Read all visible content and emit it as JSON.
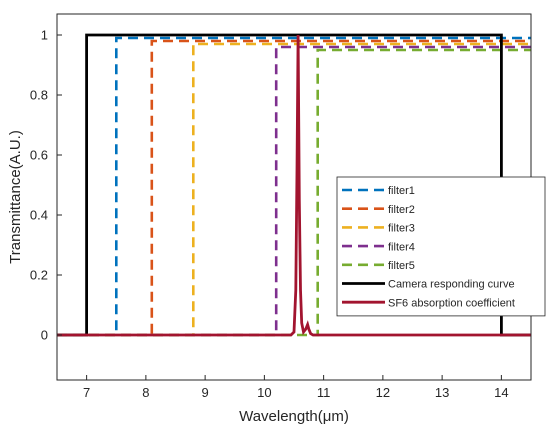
{
  "chart_data": {
    "type": "line",
    "title": "",
    "xlabel": "Wavelength(μm)",
    "ylabel": "Transmittance(A.U.)",
    "xlim": [
      6.5,
      14.5
    ],
    "ylim": [
      -0.15,
      1.07
    ],
    "xticks": [
      7,
      8,
      9,
      10,
      11,
      12,
      13,
      14
    ],
    "yticks": [
      0,
      0.2,
      0.4,
      0.6,
      0.8,
      1
    ],
    "grid": false,
    "legend_position": "middle-right",
    "series": [
      {
        "name": "filter1",
        "style": "dashed",
        "color": "#0072BD",
        "x": [
          6.5,
          7.5,
          7.5,
          14.5
        ],
        "y": [
          0,
          0,
          0.99,
          0.99
        ]
      },
      {
        "name": "filter2",
        "style": "dashed",
        "color": "#D95319",
        "x": [
          6.5,
          8.1,
          8.1,
          14.5
        ],
        "y": [
          0,
          0,
          0.98,
          0.98
        ]
      },
      {
        "name": "filter3",
        "style": "dashed",
        "color": "#EDB120",
        "x": [
          6.5,
          8.8,
          8.8,
          14.5
        ],
        "y": [
          0,
          0,
          0.97,
          0.97
        ]
      },
      {
        "name": "filter4",
        "style": "dashed",
        "color": "#7E2F8E",
        "x": [
          6.5,
          10.2,
          10.2,
          14.5
        ],
        "y": [
          0,
          0,
          0.96,
          0.96
        ]
      },
      {
        "name": "filter5",
        "style": "dashed",
        "color": "#77AC30",
        "x": [
          6.5,
          10.9,
          10.9,
          14.5
        ],
        "y": [
          0,
          0,
          0.95,
          0.95
        ]
      },
      {
        "name": "Camera responding curve",
        "style": "solid",
        "color": "#000000",
        "x": [
          6.5,
          7.0,
          7.0,
          14.0,
          14.0,
          14.5
        ],
        "y": [
          0,
          0,
          1,
          1,
          0,
          0
        ]
      },
      {
        "name": "SF6 absorption coefficient",
        "style": "solid",
        "color": "#A2142F",
        "x": [
          6.5,
          10.45,
          10.5,
          10.53,
          10.55,
          10.57,
          10.59,
          10.61,
          10.63,
          10.66,
          10.7,
          10.73,
          10.75,
          10.78,
          10.82,
          14.5
        ],
        "y": [
          0,
          0,
          0.01,
          0.15,
          0.55,
          1.0,
          0.45,
          0.15,
          0.04,
          0.01,
          0.02,
          0.035,
          0.02,
          0.005,
          0,
          0
        ]
      }
    ]
  }
}
